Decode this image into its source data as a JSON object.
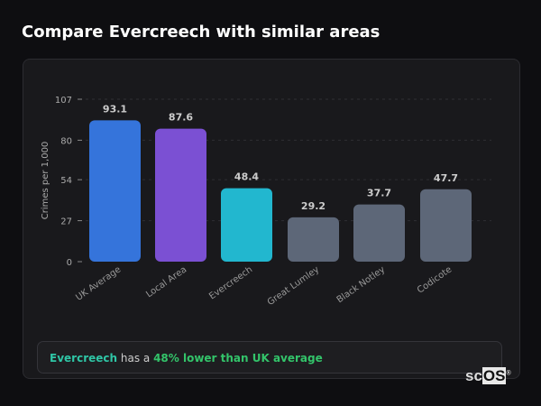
{
  "header": {
    "title": "Compare Evercreech with similar areas"
  },
  "summary": {
    "area": "Evercreech",
    "middle": " has a ",
    "comparison": "48% lower than UK average"
  },
  "logo": {
    "text_a": "sc",
    "text_b": "OS",
    "mark": "®"
  },
  "chart_data": {
    "type": "bar",
    "title": "",
    "xlabel": "",
    "ylabel": "Crimes per 1,000",
    "ylim": [
      0,
      107
    ],
    "yticks": [
      0,
      27,
      54,
      80,
      107
    ],
    "categories": [
      "UK Average",
      "Local Area",
      "Evercreech",
      "Great Lumley",
      "Black Notley",
      "Codicote"
    ],
    "values": [
      93.1,
      87.6,
      48.4,
      29.2,
      37.7,
      47.7
    ],
    "colors": [
      "#3574db",
      "#7b50d3",
      "#22b7cf",
      "#5d6778",
      "#5d6778",
      "#5d6778"
    ],
    "grid": true
  }
}
